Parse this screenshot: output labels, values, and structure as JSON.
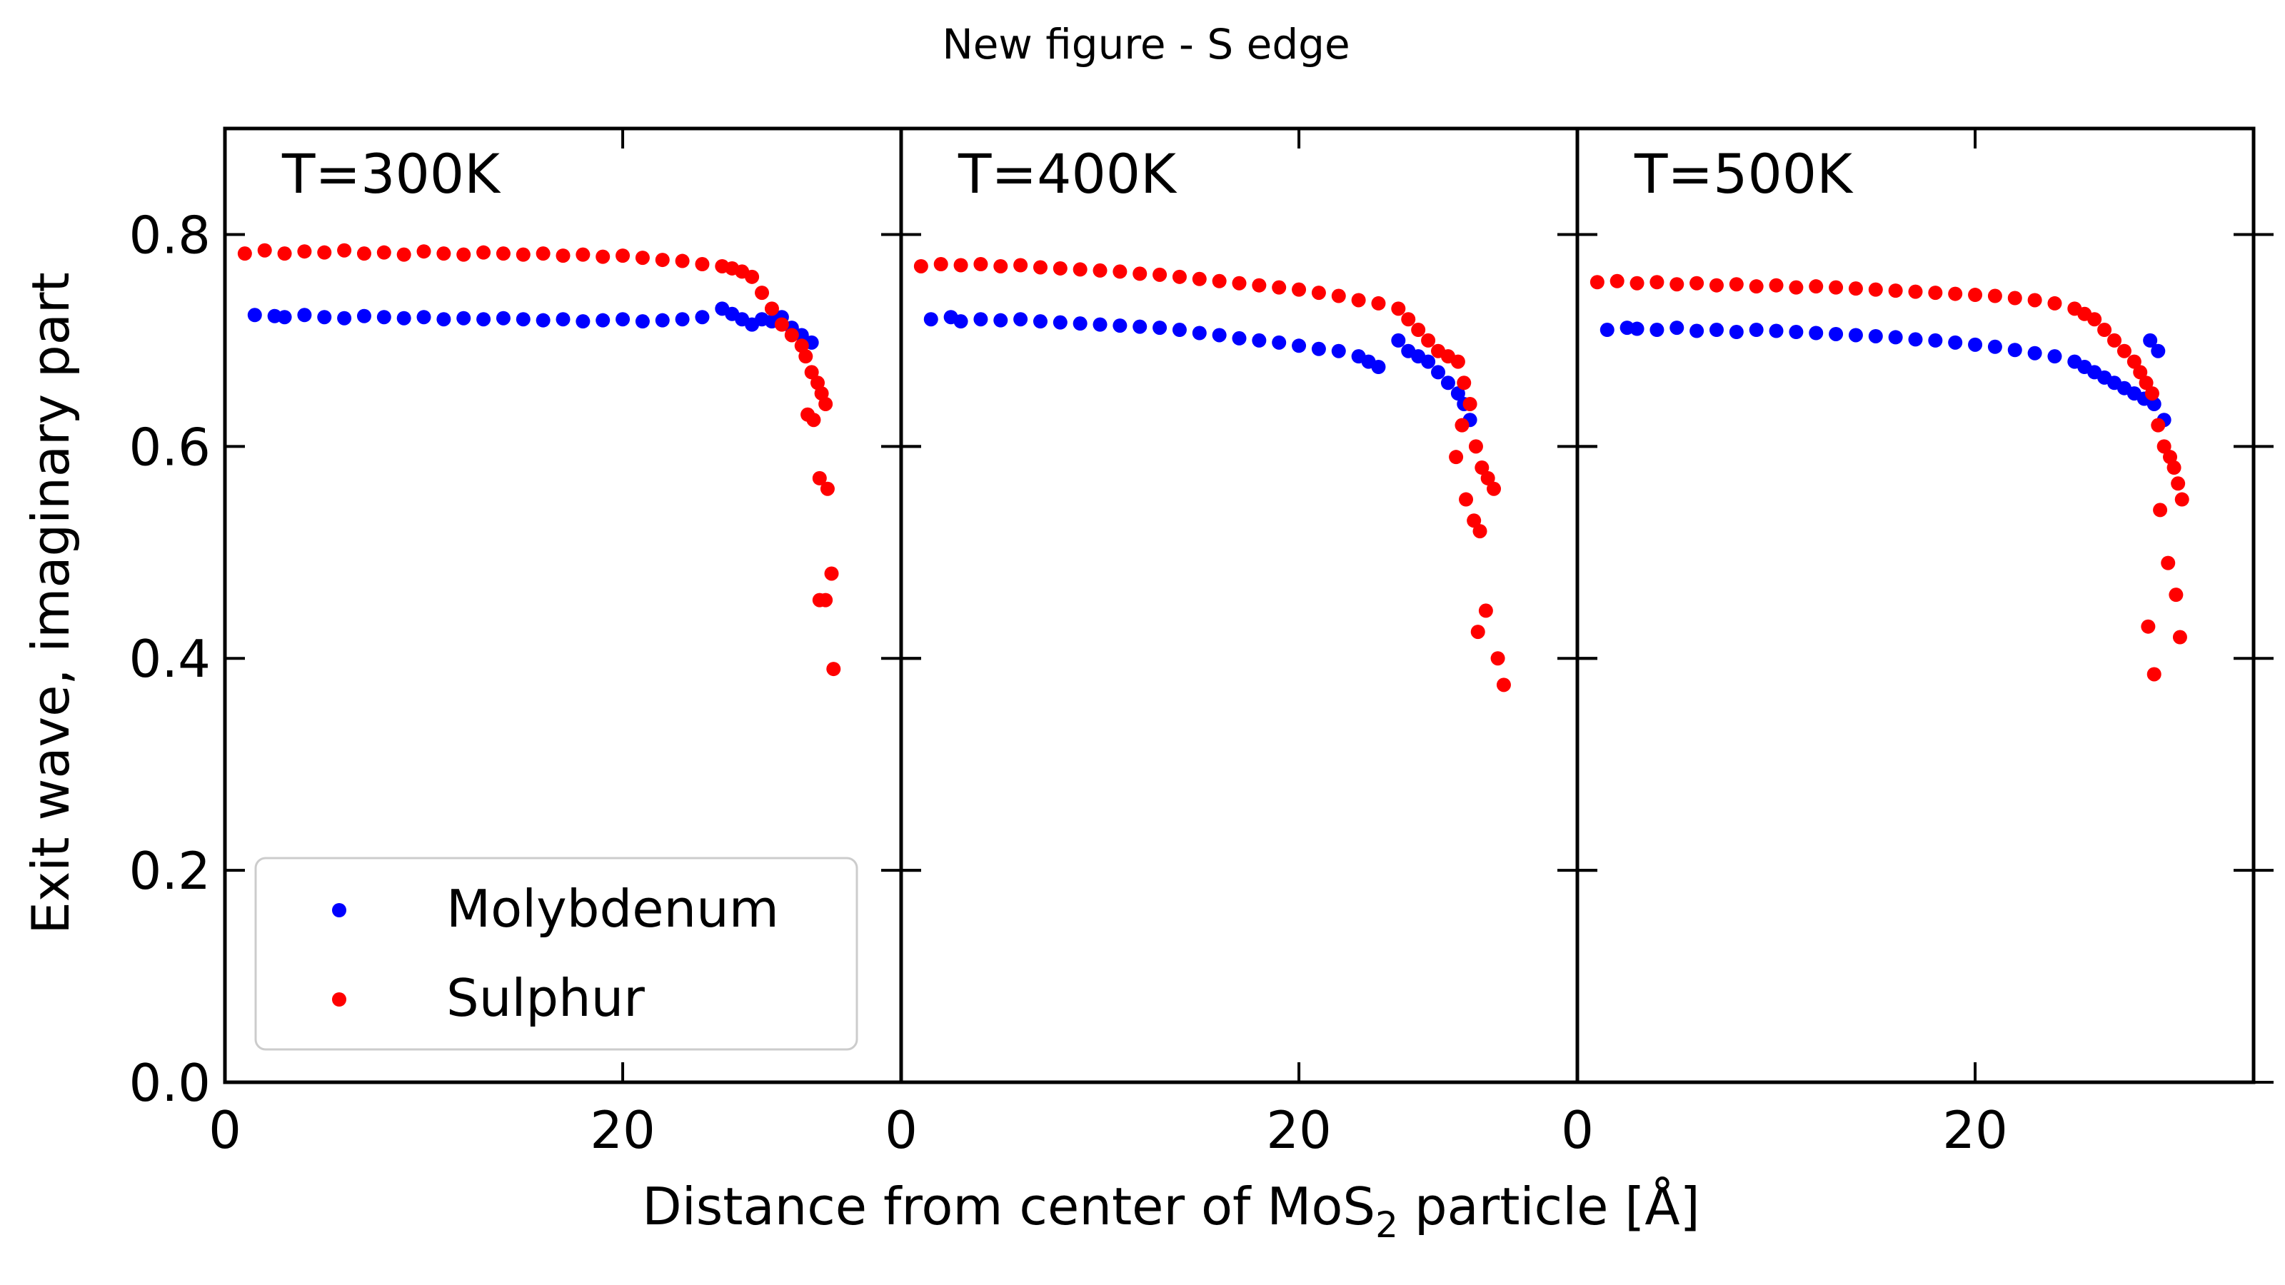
{
  "chart_data": {
    "type": "scatter",
    "title": "New figure - S edge",
    "ylabel": "Exit wave, imaginary part",
    "xlabel_parts": [
      "Distance from center of MoS",
      "2",
      " particle [Å]"
    ],
    "xlim": [
      0,
      34
    ],
    "ylim": [
      0,
      0.9
    ],
    "xticks": [
      0,
      20
    ],
    "yticks": [
      0.0,
      0.2,
      0.4,
      0.6,
      0.8
    ],
    "xtick_labels": [
      "0",
      "20"
    ],
    "ytick_labels": [
      "0.0",
      "0.2",
      "0.4",
      "0.6",
      "0.8"
    ],
    "legend": {
      "location": "lower-left",
      "entries": [
        {
          "name": "Molybdenum",
          "color": "#0000ff"
        },
        {
          "name": "Sulphur",
          "color": "#ff0000"
        }
      ]
    },
    "panels": [
      {
        "label": "T=300K",
        "series": [
          {
            "name": "Molybdenum",
            "color": "#0000ff",
            "x": [
              1.5,
              2.5,
              3,
              4,
              5,
              6,
              7,
              8,
              9,
              10,
              11,
              12,
              13,
              14,
              15,
              16,
              17,
              18,
              19,
              20,
              21,
              22,
              23,
              24,
              25,
              25.5,
              26,
              26.5,
              27,
              27.5,
              28,
              28.5,
              29,
              29.5
            ],
            "y": [
              0.724,
              0.723,
              0.722,
              0.724,
              0.722,
              0.721,
              0.723,
              0.722,
              0.721,
              0.722,
              0.72,
              0.721,
              0.72,
              0.721,
              0.72,
              0.719,
              0.72,
              0.718,
              0.719,
              0.72,
              0.718,
              0.719,
              0.72,
              0.722,
              0.73,
              0.725,
              0.72,
              0.715,
              0.72,
              0.718,
              0.722,
              0.712,
              0.705,
              0.698
            ]
          },
          {
            "name": "Sulphur",
            "color": "#ff0000",
            "x": [
              1,
              2,
              3,
              4,
              5,
              6,
              7,
              8,
              9,
              10,
              11,
              12,
              13,
              14,
              15,
              16,
              17,
              18,
              19,
              20,
              21,
              22,
              23,
              24,
              25,
              25.5,
              26,
              26.5,
              27,
              27.5,
              28,
              28.5,
              29,
              29.2,
              29.5,
              29.8,
              30,
              30.2,
              29.3,
              29.6,
              29.9,
              30.3,
              30.5,
              30.2,
              29.9,
              30.6
            ],
            "y": [
              0.782,
              0.785,
              0.782,
              0.784,
              0.783,
              0.785,
              0.782,
              0.783,
              0.781,
              0.784,
              0.782,
              0.781,
              0.783,
              0.782,
              0.781,
              0.782,
              0.78,
              0.781,
              0.779,
              0.78,
              0.778,
              0.776,
              0.775,
              0.772,
              0.77,
              0.768,
              0.765,
              0.76,
              0.745,
              0.73,
              0.715,
              0.705,
              0.695,
              0.685,
              0.67,
              0.66,
              0.65,
              0.64,
              0.63,
              0.625,
              0.57,
              0.56,
              0.48,
              0.455,
              0.455,
              0.39
            ]
          }
        ]
      },
      {
        "label": "T=400K",
        "series": [
          {
            "name": "Molybdenum",
            "color": "#0000ff",
            "x": [
              1.5,
              2.5,
              3,
              4,
              5,
              6,
              7,
              8,
              9,
              10,
              11,
              12,
              13,
              14,
              15,
              16,
              17,
              18,
              19,
              20,
              21,
              22,
              23,
              23.5,
              24,
              25,
              25.5,
              26,
              26.5,
              27,
              27.5,
              28,
              28.3,
              28.6
            ],
            "y": [
              0.72,
              0.722,
              0.718,
              0.72,
              0.719,
              0.72,
              0.718,
              0.717,
              0.716,
              0.715,
              0.714,
              0.713,
              0.712,
              0.71,
              0.707,
              0.705,
              0.702,
              0.7,
              0.698,
              0.695,
              0.692,
              0.69,
              0.685,
              0.68,
              0.675,
              0.7,
              0.69,
              0.685,
              0.68,
              0.67,
              0.66,
              0.65,
              0.64,
              0.625
            ]
          },
          {
            "name": "Sulphur",
            "color": "#ff0000",
            "x": [
              1,
              2,
              3,
              4,
              5,
              6,
              7,
              8,
              9,
              10,
              11,
              12,
              13,
              14,
              15,
              16,
              17,
              18,
              19,
              20,
              21,
              22,
              23,
              24,
              25,
              25.5,
              26,
              26.5,
              27,
              27.5,
              28,
              28.3,
              28.6,
              28.9,
              29.2,
              29.5,
              29.8,
              28.2,
              28.8,
              29.1,
              29.4,
              30,
              30.3,
              28.4,
              29.0,
              27.9
            ],
            "y": [
              0.77,
              0.772,
              0.771,
              0.772,
              0.77,
              0.771,
              0.769,
              0.768,
              0.767,
              0.766,
              0.765,
              0.763,
              0.762,
              0.76,
              0.758,
              0.756,
              0.754,
              0.752,
              0.75,
              0.748,
              0.745,
              0.742,
              0.738,
              0.735,
              0.73,
              0.72,
              0.71,
              0.7,
              0.69,
              0.685,
              0.68,
              0.66,
              0.64,
              0.6,
              0.58,
              0.57,
              0.56,
              0.62,
              0.53,
              0.52,
              0.445,
              0.4,
              0.375,
              0.55,
              0.425,
              0.59
            ]
          }
        ]
      },
      {
        "label": "T=500K",
        "series": [
          {
            "name": "Molybdenum",
            "color": "#0000ff",
            "x": [
              1.5,
              2.5,
              3,
              4,
              5,
              6,
              7,
              8,
              9,
              10,
              11,
              12,
              13,
              14,
              15,
              16,
              17,
              18,
              19,
              20,
              21,
              22,
              23,
              24,
              25,
              25.5,
              26,
              26.5,
              27,
              27.5,
              28,
              28.5,
              29,
              29.5,
              29.2,
              28.8
            ],
            "y": [
              0.71,
              0.712,
              0.711,
              0.71,
              0.712,
              0.709,
              0.71,
              0.708,
              0.71,
              0.709,
              0.708,
              0.707,
              0.706,
              0.705,
              0.704,
              0.703,
              0.701,
              0.7,
              0.698,
              0.696,
              0.694,
              0.691,
              0.688,
              0.685,
              0.68,
              0.675,
              0.67,
              0.665,
              0.66,
              0.655,
              0.65,
              0.645,
              0.64,
              0.625,
              0.69,
              0.7
            ]
          },
          {
            "name": "Sulphur",
            "color": "#ff0000",
            "x": [
              1,
              2,
              3,
              4,
              5,
              6,
              7,
              8,
              9,
              10,
              11,
              12,
              13,
              14,
              15,
              16,
              17,
              18,
              19,
              20,
              21,
              22,
              23,
              24,
              25,
              25.5,
              26,
              26.5,
              27,
              27.5,
              28,
              28.3,
              28.6,
              28.9,
              29.2,
              29.5,
              29.8,
              30,
              30.2,
              30.4,
              29.3,
              29.7,
              30.1,
              29.0,
              28.7,
              30.3
            ],
            "y": [
              0.755,
              0.756,
              0.754,
              0.755,
              0.753,
              0.754,
              0.752,
              0.753,
              0.751,
              0.752,
              0.75,
              0.751,
              0.75,
              0.749,
              0.748,
              0.747,
              0.746,
              0.745,
              0.744,
              0.743,
              0.742,
              0.74,
              0.738,
              0.735,
              0.73,
              0.725,
              0.72,
              0.71,
              0.7,
              0.69,
              0.68,
              0.67,
              0.66,
              0.65,
              0.62,
              0.6,
              0.59,
              0.58,
              0.565,
              0.55,
              0.54,
              0.49,
              0.46,
              0.385,
              0.43,
              0.42
            ]
          }
        ]
      }
    ]
  }
}
